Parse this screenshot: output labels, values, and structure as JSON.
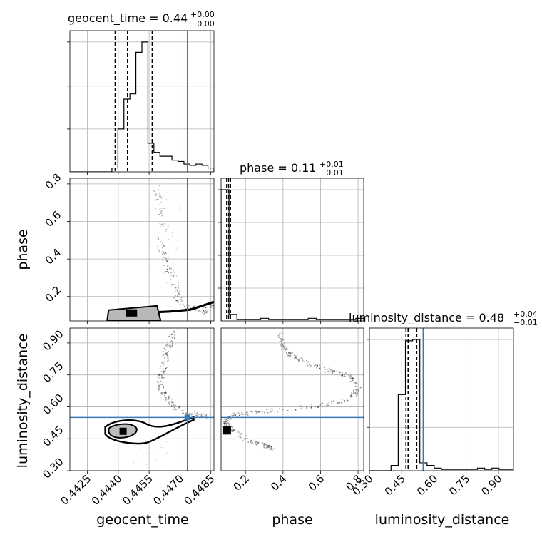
{
  "chart_data": {
    "type": "corner",
    "truth_color": "#3a7ab6",
    "parameters": [
      {
        "name": "geocent_time",
        "axis_label": "geocent_time",
        "title_prefix": "geocent_time = ",
        "median": "0.44",
        "plus": "+0.00",
        "minus": "−0.00",
        "range": [
          0.44165,
          0.44865
        ],
        "ticks": [
          0.4425,
          0.444,
          0.4455,
          0.447,
          0.4485
        ],
        "tick_labels": [
          "0.4425",
          "0.4440",
          "0.4455",
          "0.4470",
          "0.4485"
        ],
        "truth": 0.44736,
        "quantiles": [
          0.44385,
          0.44445,
          0.44565
        ],
        "hist_counts": [
          0,
          0,
          0,
          0,
          0,
          0,
          0,
          0.03,
          0.33,
          0.56,
          0.6,
          0.92,
          1.0,
          0.22,
          0.15,
          0.12,
          0.12,
          0.09,
          0.08,
          0.06,
          0.05,
          0.06,
          0.05,
          0.03
        ]
      },
      {
        "name": "phase",
        "axis_label": "phase",
        "title_prefix": "phase = ",
        "median": "0.11",
        "plus": "+0.01",
        "minus": "−0.01",
        "range": [
          0.07,
          0.83
        ],
        "ticks": [
          0.2,
          0.4,
          0.6,
          0.8
        ],
        "tick_labels": [
          "0.2",
          "0.4",
          "0.6",
          "0.8"
        ],
        "truth": null,
        "quantiles": [
          0.1,
          0.11,
          0.12
        ],
        "hist_counts": [
          1.0,
          0.05,
          0.01,
          0.01,
          0.01,
          0.02,
          0.01,
          0.01,
          0.01,
          0.01,
          0.01,
          0.02,
          0.01,
          0.01,
          0.01,
          0.01,
          0.01,
          0.02
        ]
      },
      {
        "name": "luminosity_distance",
        "axis_label": "luminosity_distance",
        "title_prefix": "luminosity_distance = ",
        "median": "0.48",
        "plus": "+0.04",
        "minus": "−0.01",
        "range": [
          0.3,
          0.97
        ],
        "ticks": [
          0.3,
          0.45,
          0.6,
          0.75,
          0.9
        ],
        "tick_labels": [
          "0.30",
          "0.45",
          "0.60",
          "0.75",
          "0.90"
        ],
        "truth": 0.55,
        "quantiles": [
          0.47,
          0.48,
          0.52
        ],
        "hist_counts": [
          0,
          0,
          0,
          0.04,
          0.58,
          0.99,
          1.0,
          0.06,
          0.04,
          0.02,
          0.01,
          0.01,
          0.01,
          0.01,
          0.01,
          0.02,
          0.01,
          0.02,
          0.01,
          0.01
        ]
      }
    ],
    "histogram_ticks": [
      [
        0.33,
        0.66,
        1.0
      ],
      [
        0.25,
        0.5,
        0.75,
        1.0
      ],
      [
        0.33,
        0.66,
        1.0
      ]
    ],
    "pair_phase_vs_time": {
      "ridge": [
        [
          0.4458,
          0.79
        ],
        [
          0.446,
          0.7
        ],
        [
          0.4462,
          0.58
        ],
        [
          0.446,
          0.47
        ],
        [
          0.4462,
          0.4
        ],
        [
          0.4465,
          0.34
        ],
        [
          0.4467,
          0.29
        ],
        [
          0.4468,
          0.22
        ],
        [
          0.447,
          0.17
        ],
        [
          0.4475,
          0.14
        ],
        [
          0.448,
          0.12
        ],
        [
          0.4484,
          0.14
        ],
        [
          0.4486,
          0.17
        ]
      ],
      "lower_arm": [
        [
          0.4444,
          0.11
        ],
        [
          0.4455,
          0.115
        ],
        [
          0.4465,
          0.12
        ],
        [
          0.4475,
          0.13
        ],
        [
          0.4482,
          0.155
        ],
        [
          0.4486,
          0.17
        ]
      ],
      "core": [
        0.4445,
        0.105
      ]
    },
    "pair_distance_vs_time": {
      "ridge": [
        [
          0.44675,
          0.96
        ],
        [
          0.4465,
          0.91
        ],
        [
          0.4463,
          0.86
        ],
        [
          0.44625,
          0.81
        ],
        [
          0.4461,
          0.76
        ],
        [
          0.446,
          0.71
        ],
        [
          0.4462,
          0.66
        ],
        [
          0.4465,
          0.62
        ],
        [
          0.447,
          0.58
        ],
        [
          0.4478,
          0.565
        ],
        [
          0.4484,
          0.56
        ]
      ],
      "core": [
        0.4442,
        0.485
      ]
    },
    "pair_distance_vs_phase": {
      "ridge": [
        [
          0.38,
          0.95
        ],
        [
          0.4,
          0.88
        ],
        [
          0.45,
          0.84
        ],
        [
          0.55,
          0.8
        ],
        [
          0.65,
          0.77
        ],
        [
          0.75,
          0.75
        ],
        [
          0.8,
          0.7
        ],
        [
          0.76,
          0.64
        ],
        [
          0.6,
          0.61
        ],
        [
          0.4,
          0.59
        ],
        [
          0.22,
          0.575
        ],
        [
          0.12,
          0.56
        ],
        [
          0.09,
          0.53
        ],
        [
          0.12,
          0.5
        ],
        [
          0.2,
          0.45
        ],
        [
          0.3,
          0.42
        ],
        [
          0.35,
          0.4
        ]
      ],
      "core": [
        0.1,
        0.49
      ]
    }
  }
}
